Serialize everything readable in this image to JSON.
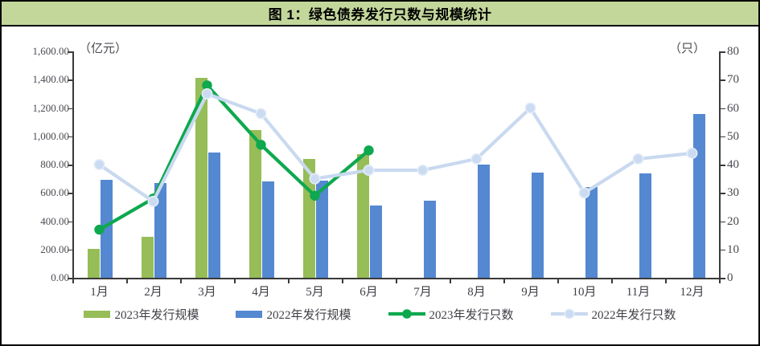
{
  "title": "图 1：绿色债券发行只数与规模统计",
  "title_bg_color": "#c3d79b",
  "chart_data": {
    "type": "combo bar+line, dual axis",
    "categories": [
      "1月",
      "2月",
      "3月",
      "4月",
      "5月",
      "6月",
      "7月",
      "8月",
      "9月",
      "10月",
      "11月",
      "12月"
    ],
    "series": [
      {
        "name": "2023年发行规模",
        "type": "bar",
        "axis": "left",
        "color": "#96bd58",
        "values": [
          205,
          290,
          1410,
          1045,
          840,
          875,
          null,
          null,
          null,
          null,
          null,
          null
        ]
      },
      {
        "name": "2022年发行规模",
        "type": "bar",
        "axis": "left",
        "color": "#5488d1",
        "values": [
          695,
          670,
          885,
          680,
          685,
          510,
          545,
          800,
          745,
          640,
          740,
          1160
        ]
      },
      {
        "name": "2023年发行只数",
        "type": "line",
        "axis": "right",
        "color": "#0ea84e",
        "marker_fill": "#0ea84e",
        "values": [
          17,
          28,
          68,
          47,
          29,
          45,
          null,
          null,
          null,
          null,
          null,
          null
        ]
      },
      {
        "name": "2022年发行只数",
        "type": "line",
        "axis": "right",
        "color": "#c9d9ef",
        "marker_fill": "#cbdbf2",
        "marker_stroke": "#e4edf8",
        "values": [
          40,
          27,
          65,
          58,
          35,
          38,
          38,
          42,
          60,
          30,
          42,
          44
        ]
      }
    ],
    "left_axis": {
      "unit": "（亿元）",
      "min": 0,
      "max": 1600,
      "step": 200,
      "tick_labels": [
        "0.00",
        "200.00",
        "400.00",
        "600.00",
        "800.00",
        "1,000.00",
        "1,200.00",
        "1,400.00",
        "1,600.00"
      ]
    },
    "right_axis": {
      "unit": "（只）",
      "min": 0,
      "max": 80,
      "step": 10,
      "tick_labels": [
        "0",
        "10",
        "20",
        "30",
        "40",
        "50",
        "60",
        "70",
        "80"
      ]
    },
    "legend_position": "bottom",
    "grid": "off"
  }
}
